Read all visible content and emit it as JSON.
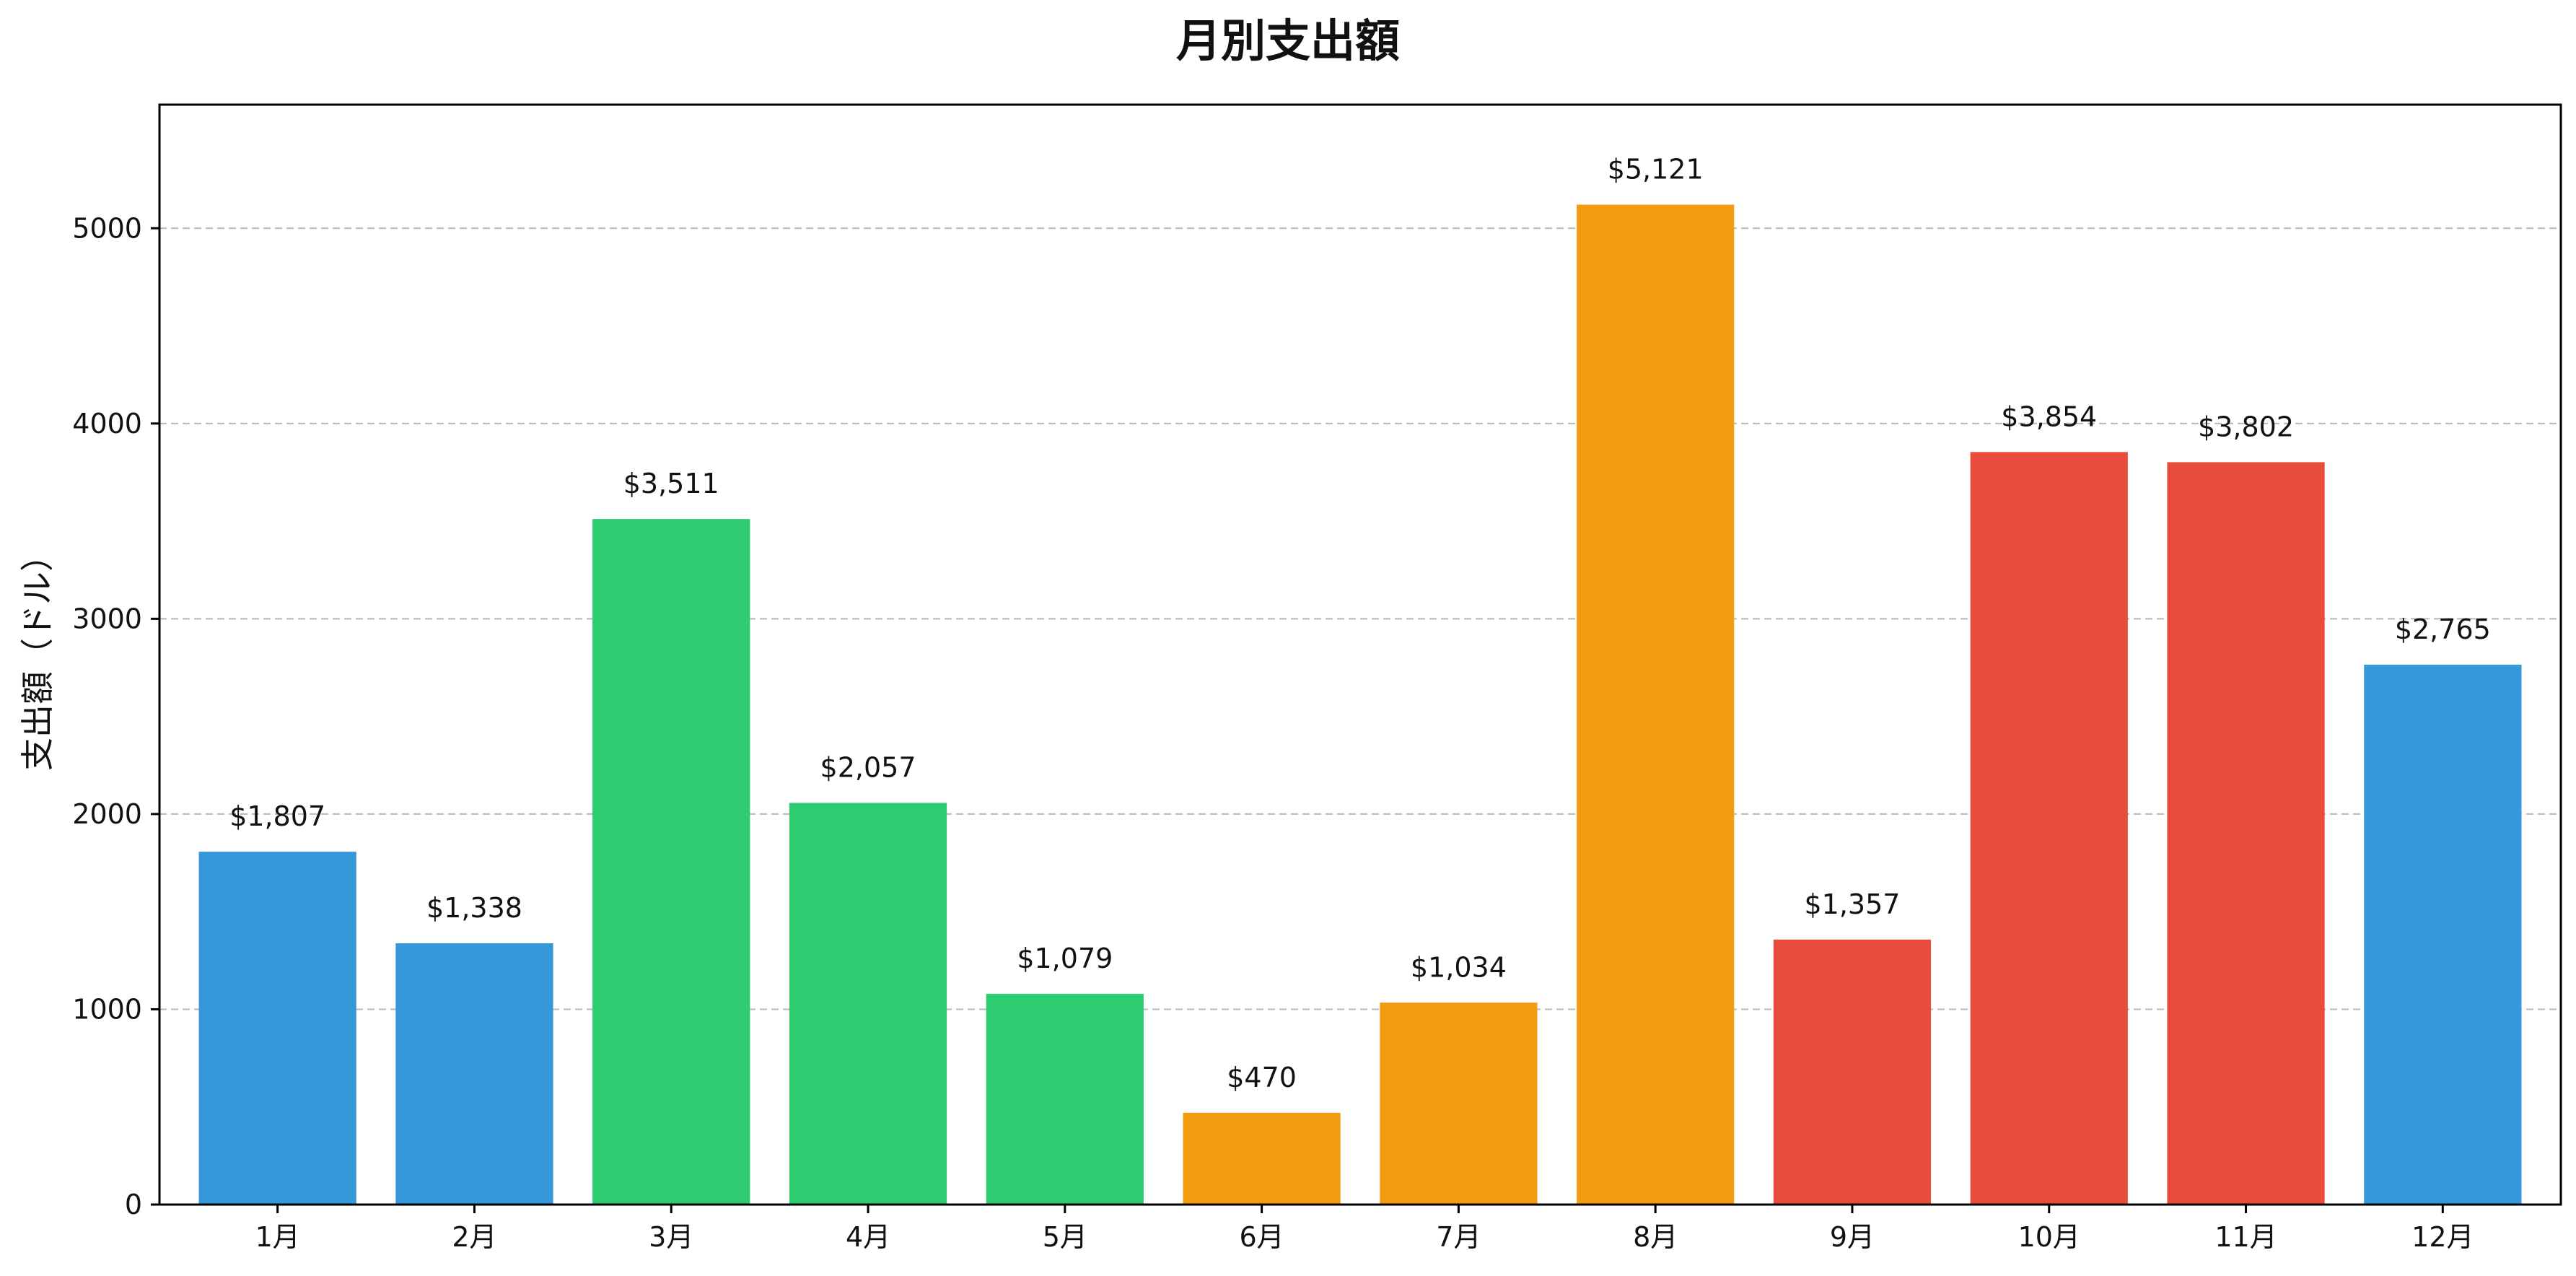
{
  "chart_data": {
    "type": "bar",
    "title": "月別支出額",
    "xlabel": "",
    "ylabel": "支出額（ドル）",
    "categories": [
      "1月",
      "2月",
      "3月",
      "4月",
      "5月",
      "6月",
      "7月",
      "8月",
      "9月",
      "10月",
      "11月",
      "12月"
    ],
    "values": [
      1807,
      1338,
      3511,
      2057,
      1079,
      470,
      1034,
      5121,
      1357,
      3854,
      3802,
      2765
    ],
    "data_labels": [
      "$1,807",
      "$1,338",
      "$3,511",
      "$2,057",
      "$1,079",
      "$470",
      "$1,034",
      "$5,121",
      "$1,357",
      "$3,854",
      "$3,802",
      "$2,765"
    ],
    "bar_colors": [
      "#3498db",
      "#3498db",
      "#2ecc71",
      "#2ecc71",
      "#2ecc71",
      "#f39c12",
      "#f39c12",
      "#f39c12",
      "#e74c3c",
      "#e74c3c",
      "#e74c3c",
      "#3498db"
    ],
    "ylim": [
      0,
      5633
    ],
    "yticks": [
      0,
      1000,
      2000,
      3000,
      4000,
      5000
    ],
    "grid": "y-dashed",
    "legend": "none"
  }
}
